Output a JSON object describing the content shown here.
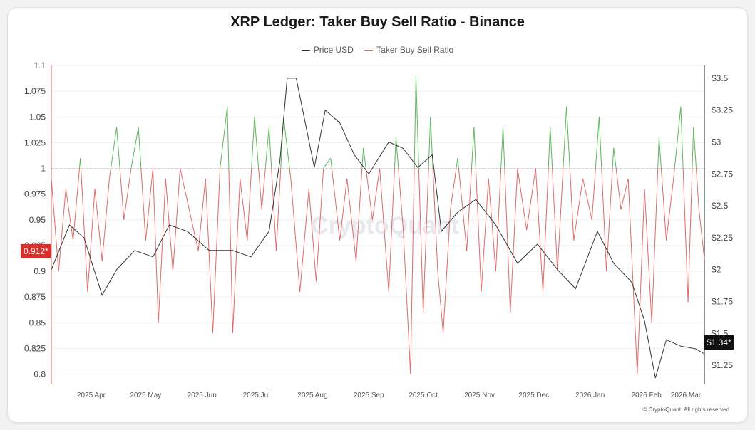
{
  "chart_data": {
    "type": "line",
    "title": "XRP Ledger: Taker Buy Sell Ratio - Binance",
    "legend": [
      "Price USD",
      "Taker Buy Sell Ratio"
    ],
    "legend_position": "top-center",
    "x_labels": [
      "2025 Apr",
      "2025 May",
      "2025 Jun",
      "2025 Jul",
      "2025 Aug",
      "2025 Sep",
      "2025 Oct",
      "2025 Nov",
      "2025 Dec",
      "2026 Jan",
      "2026 Feb",
      "2026 Mar"
    ],
    "xlim": [
      "2025-03-10",
      "2026-03-05"
    ],
    "y_left": {
      "ticks": [
        "1.1",
        "1.075",
        "1.05",
        "1.025",
        "1",
        "0.975",
        "0.95",
        "0.925",
        "0.9",
        "0.875",
        "0.85",
        "0.825",
        "0.8"
      ],
      "range": [
        0.79,
        1.1
      ]
    },
    "y_right": {
      "ticks": [
        "$3.5",
        "$3.25",
        "$3",
        "$2.75",
        "$2.5",
        "$2.25",
        "$2",
        "$1.75",
        "$1.5",
        "$1.25"
      ],
      "range": [
        1.1,
        3.6
      ]
    },
    "reference_line": 1,
    "grid": "horizontal",
    "current_ratio_label": "0.912*",
    "current_price_label": "$1.34*",
    "series": [
      {
        "name": "Price USD",
        "axis": "right",
        "color": "#333333",
        "points": [
          [
            "2025-03-10",
            2.0
          ],
          [
            "2025-03-20",
            2.35
          ],
          [
            "2025-03-28",
            2.25
          ],
          [
            "2025-04-07",
            1.8
          ],
          [
            "2025-04-15",
            2.0
          ],
          [
            "2025-04-25",
            2.15
          ],
          [
            "2025-05-05",
            2.1
          ],
          [
            "2025-05-14",
            2.35
          ],
          [
            "2025-05-24",
            2.3
          ],
          [
            "2025-06-05",
            2.15
          ],
          [
            "2025-06-18",
            2.15
          ],
          [
            "2025-06-28",
            2.1
          ],
          [
            "2025-07-08",
            2.3
          ],
          [
            "2025-07-14",
            2.85
          ],
          [
            "2025-07-18",
            3.5
          ],
          [
            "2025-07-23",
            3.5
          ],
          [
            "2025-08-02",
            2.8
          ],
          [
            "2025-08-08",
            3.25
          ],
          [
            "2025-08-16",
            3.15
          ],
          [
            "2025-08-24",
            2.9
          ],
          [
            "2025-09-01",
            2.75
          ],
          [
            "2025-09-12",
            3.0
          ],
          [
            "2025-09-20",
            2.95
          ],
          [
            "2025-09-28",
            2.8
          ],
          [
            "2025-10-06",
            2.9
          ],
          [
            "2025-10-11",
            2.3
          ],
          [
            "2025-10-20",
            2.45
          ],
          [
            "2025-10-30",
            2.55
          ],
          [
            "2025-11-10",
            2.35
          ],
          [
            "2025-11-22",
            2.05
          ],
          [
            "2025-12-03",
            2.2
          ],
          [
            "2025-12-14",
            2.0
          ],
          [
            "2025-12-24",
            1.85
          ],
          [
            "2026-01-05",
            2.3
          ],
          [
            "2026-01-14",
            2.05
          ],
          [
            "2026-01-24",
            1.9
          ],
          [
            "2026-01-31",
            1.6
          ],
          [
            "2026-02-06",
            1.15
          ],
          [
            "2026-02-12",
            1.45
          ],
          [
            "2026-02-20",
            1.4
          ],
          [
            "2026-02-28",
            1.38
          ],
          [
            "2026-03-05",
            1.34
          ]
        ]
      },
      {
        "name": "Taker Buy Sell Ratio",
        "axis": "left",
        "color": "#e06a6a",
        "color_above_1": "#5cb85c",
        "points": [
          [
            "2025-03-10",
            0.99
          ],
          [
            "2025-03-14",
            0.9
          ],
          [
            "2025-03-18",
            0.98
          ],
          [
            "2025-03-22",
            0.93
          ],
          [
            "2025-03-26",
            1.01
          ],
          [
            "2025-03-30",
            0.88
          ],
          [
            "2025-04-03",
            0.98
          ],
          [
            "2025-04-07",
            0.91
          ],
          [
            "2025-04-11",
            0.99
          ],
          [
            "2025-04-15",
            1.04
          ],
          [
            "2025-04-19",
            0.95
          ],
          [
            "2025-04-23",
            1.0
          ],
          [
            "2025-04-27",
            1.04
          ],
          [
            "2025-05-01",
            0.93
          ],
          [
            "2025-05-05",
            1.0
          ],
          [
            "2025-05-08",
            0.85
          ],
          [
            "2025-05-12",
            0.99
          ],
          [
            "2025-05-16",
            0.9
          ],
          [
            "2025-05-20",
            1.0
          ],
          [
            "2025-05-25",
            0.96
          ],
          [
            "2025-05-30",
            0.92
          ],
          [
            "2025-06-03",
            0.99
          ],
          [
            "2025-06-07",
            0.84
          ],
          [
            "2025-06-11",
            1.0
          ],
          [
            "2025-06-15",
            1.06
          ],
          [
            "2025-06-18",
            0.84
          ],
          [
            "2025-06-22",
            0.99
          ],
          [
            "2025-06-26",
            0.93
          ],
          [
            "2025-06-30",
            1.05
          ],
          [
            "2025-07-04",
            0.96
          ],
          [
            "2025-07-08",
            1.04
          ],
          [
            "2025-07-12",
            0.92
          ],
          [
            "2025-07-16",
            1.05
          ],
          [
            "2025-07-20",
            0.99
          ],
          [
            "2025-07-25",
            0.88
          ],
          [
            "2025-07-30",
            0.98
          ],
          [
            "2025-08-03",
            0.89
          ],
          [
            "2025-08-07",
            1.0
          ],
          [
            "2025-08-11",
            1.01
          ],
          [
            "2025-08-16",
            0.93
          ],
          [
            "2025-08-20",
            0.99
          ],
          [
            "2025-08-25",
            0.91
          ],
          [
            "2025-08-29",
            1.02
          ],
          [
            "2025-09-03",
            0.95
          ],
          [
            "2025-09-07",
            1.0
          ],
          [
            "2025-09-12",
            0.88
          ],
          [
            "2025-09-16",
            1.03
          ],
          [
            "2025-09-20",
            0.94
          ],
          [
            "2025-09-24",
            0.8
          ],
          [
            "2025-09-27",
            1.09
          ],
          [
            "2025-10-01",
            0.86
          ],
          [
            "2025-10-05",
            1.05
          ],
          [
            "2025-10-09",
            0.9
          ],
          [
            "2025-10-12",
            0.84
          ],
          [
            "2025-10-16",
            0.96
          ],
          [
            "2025-10-20",
            1.01
          ],
          [
            "2025-10-25",
            0.92
          ],
          [
            "2025-10-29",
            1.04
          ],
          [
            "2025-11-02",
            0.88
          ],
          [
            "2025-11-06",
            0.99
          ],
          [
            "2025-11-10",
            0.9
          ],
          [
            "2025-11-14",
            1.04
          ],
          [
            "2025-11-18",
            0.86
          ],
          [
            "2025-11-22",
            1.0
          ],
          [
            "2025-11-27",
            0.94
          ],
          [
            "2025-12-02",
            1.0
          ],
          [
            "2025-12-06",
            0.88
          ],
          [
            "2025-12-10",
            1.04
          ],
          [
            "2025-12-14",
            0.9
          ],
          [
            "2025-12-19",
            1.06
          ],
          [
            "2025-12-23",
            0.93
          ],
          [
            "2025-12-28",
            0.99
          ],
          [
            "2026-01-02",
            0.95
          ],
          [
            "2026-01-06",
            1.05
          ],
          [
            "2026-01-10",
            0.9
          ],
          [
            "2026-01-14",
            1.02
          ],
          [
            "2026-01-18",
            0.96
          ],
          [
            "2026-01-22",
            0.99
          ],
          [
            "2026-01-27",
            0.8
          ],
          [
            "2026-01-31",
            0.98
          ],
          [
            "2026-02-04",
            0.85
          ],
          [
            "2026-02-08",
            1.03
          ],
          [
            "2026-02-12",
            0.93
          ],
          [
            "2026-02-16",
            0.99
          ],
          [
            "2026-02-20",
            1.06
          ],
          [
            "2026-02-24",
            0.87
          ],
          [
            "2026-02-27",
            1.04
          ],
          [
            "2026-03-02",
            0.96
          ],
          [
            "2026-03-05",
            0.912
          ]
        ]
      }
    ],
    "watermark": "CryptoQuant"
  },
  "copyright": "© CryptoQuant. All rights reserved"
}
